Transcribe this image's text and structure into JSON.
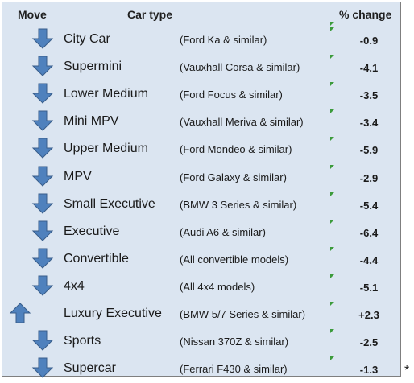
{
  "header": {
    "move": "Move",
    "car_type": "Car type",
    "change": "% change"
  },
  "colors": {
    "panel_bg": "#dbe5f1",
    "arrow_fill": "#4f81bd",
    "arrow_stroke": "#385d8a",
    "flag": "#3c9b3c"
  },
  "rows": [
    {
      "direction": "down",
      "icon": "down-arrow-icon",
      "name": "City Car",
      "desc": "(Ford Ka & similar)",
      "change": "-0.9"
    },
    {
      "direction": "down",
      "icon": "down-arrow-icon",
      "name": "Supermini",
      "desc": "(Vauxhall Corsa & similar)",
      "change": "-4.1"
    },
    {
      "direction": "down",
      "icon": "down-arrow-icon",
      "name": "Lower Medium",
      "desc": "(Ford Focus & similar)",
      "change": "-3.5"
    },
    {
      "direction": "down",
      "icon": "down-arrow-icon",
      "name": "Mini MPV",
      "desc": "(Vauxhall Meriva & similar)",
      "change": "-3.4"
    },
    {
      "direction": "down",
      "icon": "down-arrow-icon",
      "name": "Upper Medium",
      "desc": "(Ford Mondeo & similar)",
      "change": "-5.9"
    },
    {
      "direction": "down",
      "icon": "down-arrow-icon",
      "name": "MPV",
      "desc": "(Ford Galaxy & similar)",
      "change": "-2.9"
    },
    {
      "direction": "down",
      "icon": "down-arrow-icon",
      "name": "Small Executive",
      "desc": "(BMW 3 Series & similar)",
      "change": "-5.4"
    },
    {
      "direction": "down",
      "icon": "down-arrow-icon",
      "name": "Executive",
      "desc": "(Audi A6 & similar)",
      "change": "-6.4"
    },
    {
      "direction": "down",
      "icon": "down-arrow-icon",
      "name": "Convertible",
      "desc": "(All convertible models)",
      "change": "-4.4"
    },
    {
      "direction": "down",
      "icon": "down-arrow-icon",
      "name": "4x4",
      "desc": "(All 4x4 models)",
      "change": "-5.1"
    },
    {
      "direction": "up",
      "icon": "up-arrow-icon",
      "name": "Luxury Executive",
      "desc": "(BMW 5/7 Series & similar)",
      "change": "+2.3"
    },
    {
      "direction": "down",
      "icon": "down-arrow-icon",
      "name": "Sports",
      "desc": "(Nissan 370Z & similar)",
      "change": "-2.5"
    },
    {
      "direction": "down",
      "icon": "down-arrow-icon",
      "name": "Supercar",
      "desc": "(Ferrari F430 & similar)",
      "change": "-1.3"
    }
  ],
  "footnote": "*"
}
